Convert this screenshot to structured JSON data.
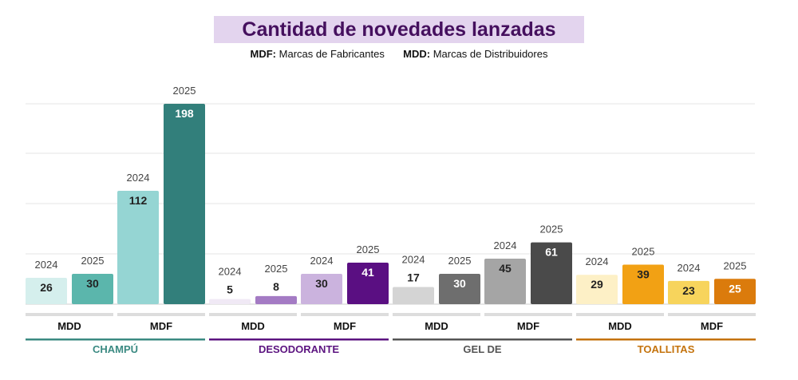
{
  "chart_data": {
    "type": "bar",
    "title": "Cantidad de novedades lanzadas",
    "legend": [
      {
        "key": "MDF:",
        "text": "Marcas de Fabricantes"
      },
      {
        "key": "MDD:",
        "text": "Marcas de Distribuidores"
      }
    ],
    "ylim": [
      0,
      200
    ],
    "grid": true,
    "categories": [
      {
        "name": "CHAMPÚ",
        "color": "#3b8a82",
        "groups": [
          {
            "label": "MDD",
            "bars": [
              {
                "year": "2024",
                "value": 26,
                "color": "#d5efed",
                "text_color": "#222222"
              },
              {
                "year": "2025",
                "value": 30,
                "color": "#5bb6ac",
                "text_color": "#222222"
              }
            ]
          },
          {
            "label": "MDF",
            "bars": [
              {
                "year": "2024",
                "value": 112,
                "color": "#95d5d3",
                "text_color": "#222222"
              },
              {
                "year": "2025",
                "value": 198,
                "color": "#327f7b",
                "text_color": "#ffffff"
              }
            ]
          }
        ]
      },
      {
        "name": "DESODORANTE",
        "color": "#5c1480",
        "groups": [
          {
            "label": "MDD",
            "bars": [
              {
                "year": "2024",
                "value": 5,
                "color": "#f0e9f5",
                "text_color": "#222222"
              },
              {
                "year": "2025",
                "value": 8,
                "color": "#a47bc4",
                "text_color": "#222222"
              }
            ]
          },
          {
            "label": "MDF",
            "bars": [
              {
                "year": "2024",
                "value": 30,
                "color": "#cbb3de",
                "text_color": "#222222"
              },
              {
                "year": "2025",
                "value": 41,
                "color": "#5a0f82",
                "text_color": "#ffffff"
              }
            ]
          }
        ]
      },
      {
        "name": "GEL DE",
        "color": "#555555",
        "groups": [
          {
            "label": "MDD",
            "bars": [
              {
                "year": "2024",
                "value": 17,
                "color": "#d4d4d4",
                "text_color": "#222222"
              },
              {
                "year": "2025",
                "value": 30,
                "color": "#6e6e6e",
                "text_color": "#ffffff"
              }
            ]
          },
          {
            "label": "MDF",
            "bars": [
              {
                "year": "2024",
                "value": 45,
                "color": "#a5a5a5",
                "text_color": "#222222"
              },
              {
                "year": "2025",
                "value": 61,
                "color": "#4a4a4a",
                "text_color": "#ffffff"
              }
            ]
          }
        ]
      },
      {
        "name": "TOALLITAS",
        "color": "#c4730d",
        "groups": [
          {
            "label": "MDD",
            "bars": [
              {
                "year": "2024",
                "value": 29,
                "color": "#fdf0c6",
                "text_color": "#222222"
              },
              {
                "year": "2025",
                "value": 39,
                "color": "#f2a114",
                "text_color": "#222222"
              }
            ]
          },
          {
            "label": "MDF",
            "bars": [
              {
                "year": "2024",
                "value": 23,
                "color": "#f7d45c",
                "text_color": "#222222"
              },
              {
                "year": "2025",
                "value": 25,
                "color": "#db7b0c",
                "text_color": "#ffffff"
              }
            ]
          }
        ]
      }
    ]
  },
  "colors": {
    "title_bg": "#e3d4ee",
    "title_text": "#45105e",
    "grid": "#e6e6e6",
    "group_bar": "#dddddd"
  }
}
